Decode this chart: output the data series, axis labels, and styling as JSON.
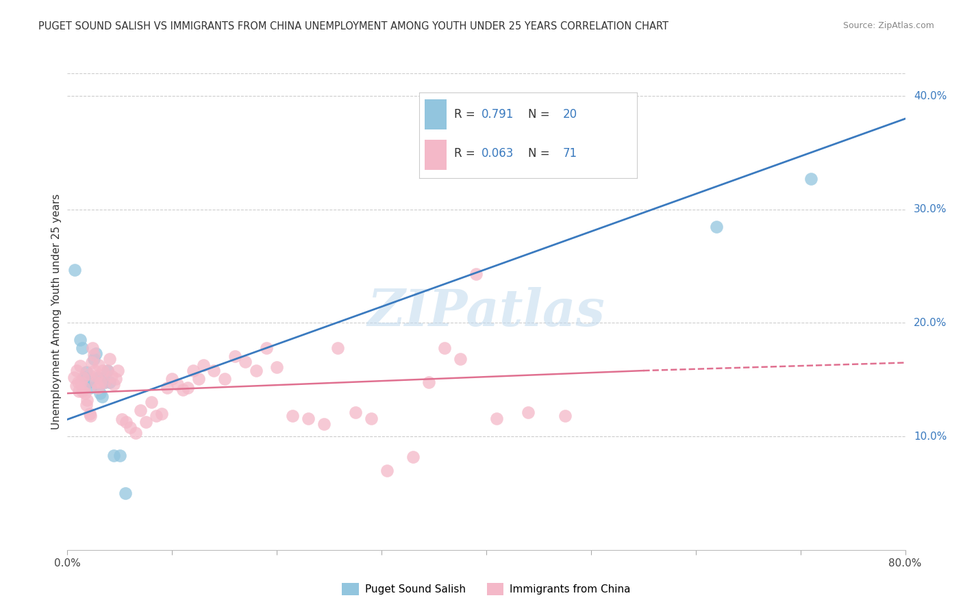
{
  "title": "PUGET SOUND SALISH VS IMMIGRANTS FROM CHINA UNEMPLOYMENT AMONG YOUTH UNDER 25 YEARS CORRELATION CHART",
  "source": "Source: ZipAtlas.com",
  "ylabel": "Unemployment Among Youth under 25 years",
  "xlim": [
    0.0,
    0.8
  ],
  "ylim": [
    0.0,
    0.42
  ],
  "watermark_text": "ZIPatlas",
  "blue_color": "#92c5de",
  "pink_color": "#f4b8c8",
  "blue_line_color": "#3a7abf",
  "pink_line_color": "#e07090",
  "blue_scatter": [
    [
      0.007,
      0.247
    ],
    [
      0.012,
      0.185
    ],
    [
      0.014,
      0.178
    ],
    [
      0.016,
      0.152
    ],
    [
      0.018,
      0.157
    ],
    [
      0.02,
      0.148
    ],
    [
      0.022,
      0.143
    ],
    [
      0.025,
      0.168
    ],
    [
      0.027,
      0.173
    ],
    [
      0.029,
      0.152
    ],
    [
      0.031,
      0.138
    ],
    [
      0.033,
      0.135
    ],
    [
      0.036,
      0.148
    ],
    [
      0.038,
      0.158
    ],
    [
      0.04,
      0.148
    ],
    [
      0.044,
      0.083
    ],
    [
      0.05,
      0.083
    ],
    [
      0.055,
      0.05
    ],
    [
      0.62,
      0.285
    ],
    [
      0.71,
      0.327
    ]
  ],
  "pink_scatter": [
    [
      0.006,
      0.152
    ],
    [
      0.008,
      0.145
    ],
    [
      0.009,
      0.158
    ],
    [
      0.01,
      0.148
    ],
    [
      0.011,
      0.14
    ],
    [
      0.012,
      0.162
    ],
    [
      0.013,
      0.148
    ],
    [
      0.014,
      0.14
    ],
    [
      0.015,
      0.152
    ],
    [
      0.016,
      0.143
    ],
    [
      0.017,
      0.138
    ],
    [
      0.018,
      0.128
    ],
    [
      0.019,
      0.132
    ],
    [
      0.02,
      0.155
    ],
    [
      0.021,
      0.12
    ],
    [
      0.022,
      0.118
    ],
    [
      0.023,
      0.165
    ],
    [
      0.024,
      0.178
    ],
    [
      0.025,
      0.172
    ],
    [
      0.026,
      0.158
    ],
    [
      0.027,
      0.148
    ],
    [
      0.028,
      0.153
    ],
    [
      0.029,
      0.143
    ],
    [
      0.03,
      0.163
    ],
    [
      0.032,
      0.148
    ],
    [
      0.034,
      0.158
    ],
    [
      0.036,
      0.148
    ],
    [
      0.038,
      0.158
    ],
    [
      0.04,
      0.168
    ],
    [
      0.042,
      0.153
    ],
    [
      0.044,
      0.146
    ],
    [
      0.046,
      0.151
    ],
    [
      0.048,
      0.158
    ],
    [
      0.052,
      0.115
    ],
    [
      0.056,
      0.113
    ],
    [
      0.06,
      0.108
    ],
    [
      0.065,
      0.103
    ],
    [
      0.07,
      0.123
    ],
    [
      0.075,
      0.113
    ],
    [
      0.08,
      0.13
    ],
    [
      0.085,
      0.118
    ],
    [
      0.09,
      0.12
    ],
    [
      0.095,
      0.143
    ],
    [
      0.1,
      0.151
    ],
    [
      0.105,
      0.146
    ],
    [
      0.11,
      0.141
    ],
    [
      0.115,
      0.143
    ],
    [
      0.12,
      0.158
    ],
    [
      0.125,
      0.151
    ],
    [
      0.13,
      0.163
    ],
    [
      0.14,
      0.158
    ],
    [
      0.15,
      0.151
    ],
    [
      0.16,
      0.171
    ],
    [
      0.17,
      0.166
    ],
    [
      0.18,
      0.158
    ],
    [
      0.19,
      0.178
    ],
    [
      0.2,
      0.161
    ],
    [
      0.215,
      0.118
    ],
    [
      0.23,
      0.116
    ],
    [
      0.245,
      0.111
    ],
    [
      0.258,
      0.178
    ],
    [
      0.275,
      0.121
    ],
    [
      0.29,
      0.116
    ],
    [
      0.305,
      0.07
    ],
    [
      0.33,
      0.082
    ],
    [
      0.345,
      0.148
    ],
    [
      0.36,
      0.178
    ],
    [
      0.375,
      0.168
    ],
    [
      0.39,
      0.243
    ],
    [
      0.41,
      0.116
    ],
    [
      0.44,
      0.121
    ],
    [
      0.475,
      0.118
    ]
  ],
  "blue_regr": [
    0.0,
    0.8,
    0.115,
    0.38
  ],
  "pink_regr_solid": [
    0.0,
    0.55,
    0.138,
    0.158
  ],
  "pink_regr_dash": [
    0.55,
    0.8,
    0.158,
    0.165
  ]
}
